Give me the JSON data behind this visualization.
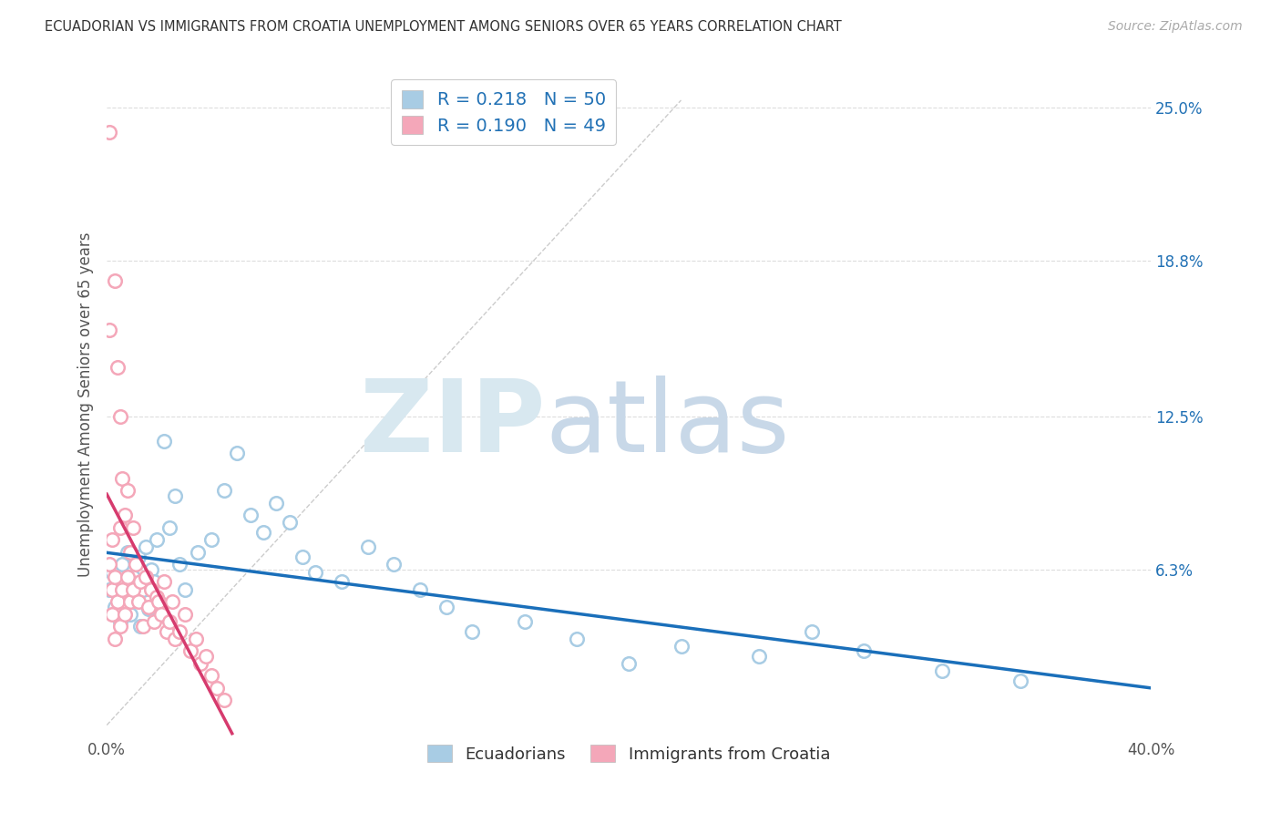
{
  "title": "ECUADORIAN VS IMMIGRANTS FROM CROATIA UNEMPLOYMENT AMONG SENIORS OVER 65 YEARS CORRELATION CHART",
  "source": "Source: ZipAtlas.com",
  "ylabel": "Unemployment Among Seniors over 65 years",
  "xlim": [
    0,
    0.4
  ],
  "ylim": [
    -0.005,
    0.265
  ],
  "ytick_positions": [
    0.0,
    0.063,
    0.125,
    0.188,
    0.25
  ],
  "ytick_labels": [
    "",
    "6.3%",
    "12.5%",
    "18.8%",
    "25.0%"
  ],
  "R_blue": 0.218,
  "N_blue": 50,
  "R_pink": 0.19,
  "N_pink": 49,
  "blue_color": "#a8cce4",
  "pink_color": "#f4a7b9",
  "blue_line_color": "#1a6fba",
  "pink_line_color": "#d63b6e",
  "legend_label_blue": "Ecuadorians",
  "legend_label_pink": "Immigrants from Croatia",
  "blue_scatter_x": [
    0.001,
    0.002,
    0.003,
    0.004,
    0.005,
    0.006,
    0.007,
    0.008,
    0.009,
    0.01,
    0.011,
    0.012,
    0.013,
    0.014,
    0.015,
    0.016,
    0.017,
    0.018,
    0.019,
    0.02,
    0.022,
    0.024,
    0.026,
    0.028,
    0.03,
    0.035,
    0.04,
    0.045,
    0.05,
    0.055,
    0.06,
    0.065,
    0.07,
    0.075,
    0.08,
    0.09,
    0.1,
    0.11,
    0.12,
    0.13,
    0.14,
    0.16,
    0.18,
    0.2,
    0.22,
    0.25,
    0.27,
    0.29,
    0.32,
    0.35
  ],
  "blue_scatter_y": [
    0.055,
    0.062,
    0.048,
    0.058,
    0.042,
    0.065,
    0.05,
    0.07,
    0.045,
    0.06,
    0.053,
    0.068,
    0.04,
    0.055,
    0.072,
    0.047,
    0.063,
    0.058,
    0.075,
    0.05,
    0.115,
    0.08,
    0.093,
    0.065,
    0.055,
    0.07,
    0.075,
    0.095,
    0.11,
    0.085,
    0.078,
    0.09,
    0.082,
    0.068,
    0.062,
    0.058,
    0.072,
    0.065,
    0.055,
    0.048,
    0.038,
    0.042,
    0.035,
    0.025,
    0.032,
    0.028,
    0.038,
    0.03,
    0.022,
    0.018
  ],
  "pink_scatter_x": [
    0.001,
    0.001,
    0.001,
    0.002,
    0.002,
    0.002,
    0.003,
    0.003,
    0.003,
    0.004,
    0.004,
    0.005,
    0.005,
    0.005,
    0.006,
    0.006,
    0.007,
    0.007,
    0.008,
    0.008,
    0.009,
    0.009,
    0.01,
    0.01,
    0.011,
    0.012,
    0.013,
    0.014,
    0.015,
    0.016,
    0.017,
    0.018,
    0.019,
    0.02,
    0.021,
    0.022,
    0.023,
    0.024,
    0.025,
    0.026,
    0.028,
    0.03,
    0.032,
    0.034,
    0.036,
    0.038,
    0.04,
    0.042,
    0.045
  ],
  "pink_scatter_y": [
    0.24,
    0.16,
    0.065,
    0.075,
    0.055,
    0.045,
    0.18,
    0.06,
    0.035,
    0.145,
    0.05,
    0.125,
    0.08,
    0.04,
    0.1,
    0.055,
    0.085,
    0.045,
    0.095,
    0.06,
    0.07,
    0.05,
    0.08,
    0.055,
    0.065,
    0.05,
    0.058,
    0.04,
    0.06,
    0.048,
    0.055,
    0.042,
    0.052,
    0.05,
    0.045,
    0.058,
    0.038,
    0.042,
    0.05,
    0.035,
    0.038,
    0.045,
    0.03,
    0.035,
    0.025,
    0.028,
    0.02,
    0.015,
    0.01
  ]
}
